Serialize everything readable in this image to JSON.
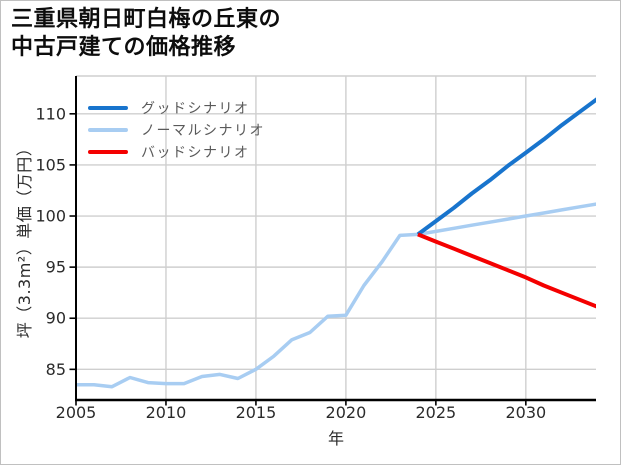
{
  "title": {
    "line1": "三重県朝日町白梅の丘東の",
    "line2": "中古戸建ての価格推移"
  },
  "legend": {
    "items": [
      {
        "label": "グッドシナリオ",
        "color": "#1874cd"
      },
      {
        "label": "ノーマルシナリオ",
        "color": "#a8cdf2"
      },
      {
        "label": "バッドシナリオ",
        "color": "#f40000"
      }
    ]
  },
  "axes": {
    "xlabel": "年",
    "ylabel": "坪（3.3m²）単価（万円）"
  },
  "chart_data": {
    "type": "line",
    "title": "三重県朝日町白梅の丘東の中古戸建ての価格推移",
    "xlabel": "年",
    "ylabel": "坪（3.3m²）単価（万円）",
    "x_ticks": [
      2005,
      2010,
      2015,
      2020,
      2025,
      2030
    ],
    "y_ticks": [
      85,
      90,
      95,
      100,
      105,
      110
    ],
    "xlim": [
      2005,
      2033.9
    ],
    "ylim": [
      82.0,
      113.7
    ],
    "grid": true,
    "legend_position": "upper-left",
    "colors": {
      "grid": "#cfcfcf",
      "plot_top_border": "#cfcfcf",
      "spine": "#000000",
      "tick": "#000000",
      "tick_label": "#2b2b2b",
      "legend_text": "#595959",
      "frame": "#c0c0c0",
      "background": "#ffffff"
    },
    "series": [
      {
        "name": "ノーマルシナリオ",
        "role": "historical-plus-normal-forecast",
        "color": "#a8cdf2",
        "width": 3.5,
        "x": [
          2005,
          2006,
          2007,
          2008,
          2009,
          2010,
          2011,
          2012,
          2013,
          2014,
          2015,
          2016,
          2017,
          2018,
          2019,
          2020,
          2021,
          2022,
          2023,
          2024,
          2025,
          2026,
          2027,
          2028,
          2029,
          2030,
          2031,
          2032,
          2033,
          2034
        ],
        "values": [
          83.5,
          83.5,
          83.3,
          84.2,
          83.7,
          83.6,
          83.6,
          84.3,
          84.5,
          84.1,
          85.0,
          86.3,
          87.9,
          88.6,
          90.2,
          90.3,
          93.2,
          95.5,
          98.1,
          98.2,
          98.5,
          98.8,
          99.1,
          99.4,
          99.7,
          100.0,
          100.3,
          100.6,
          100.9,
          101.2
        ]
      },
      {
        "name": "グッドシナリオ",
        "role": "good-forecast",
        "color": "#1874cd",
        "width": 4,
        "x": [
          2024,
          2025,
          2026,
          2027,
          2028,
          2029,
          2030,
          2031,
          2032,
          2033,
          2034
        ],
        "values": [
          98.2,
          99.5,
          100.8,
          102.2,
          103.5,
          104.9,
          106.2,
          107.5,
          108.9,
          110.2,
          111.5
        ]
      },
      {
        "name": "バッドシナリオ",
        "role": "bad-forecast",
        "color": "#f40000",
        "width": 4,
        "x": [
          2024,
          2025,
          2026,
          2027,
          2028,
          2029,
          2030,
          2031,
          2032,
          2033,
          2034
        ],
        "values": [
          98.2,
          97.5,
          96.8,
          96.1,
          95.4,
          94.7,
          94.0,
          93.2,
          92.5,
          91.8,
          91.1
        ]
      }
    ]
  }
}
